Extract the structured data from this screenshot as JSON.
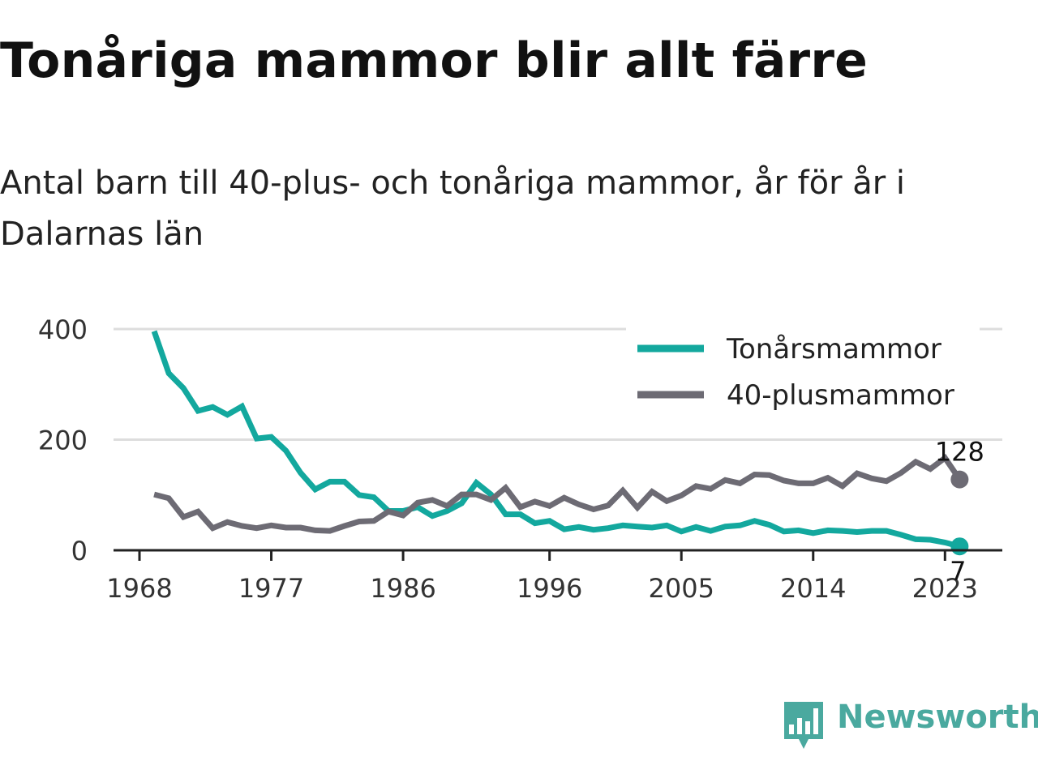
{
  "title": "Tonåriga mammor blir allt färre",
  "subtitle": "Antal barn till 40-plus- och tonåriga mammor, år för år i Dalarnas län",
  "brand": "Newsworthy",
  "chart_data": {
    "type": "line",
    "title": "Tonåriga mammor blir allt färre",
    "subtitle": "Antal barn till 40-plus- och tonåriga mammor, år för år i Dalarnas län",
    "xlabel": "",
    "ylabel": "",
    "xlim": [
      1968,
      2024
    ],
    "ylim": [
      0,
      400
    ],
    "x_ticks": [
      1968,
      1977,
      1986,
      1996,
      2005,
      2014,
      2023
    ],
    "y_ticks": [
      0,
      200,
      400
    ],
    "grid": "horizontal",
    "legend_position": "top-right",
    "x": [
      1969,
      1970,
      1971,
      1972,
      1973,
      1974,
      1975,
      1976,
      1977,
      1978,
      1979,
      1980,
      1981,
      1982,
      1983,
      1984,
      1985,
      1986,
      1987,
      1988,
      1989,
      1990,
      1991,
      1992,
      1993,
      1994,
      1995,
      1996,
      1997,
      1998,
      1999,
      2000,
      2001,
      2002,
      2003,
      2004,
      2005,
      2006,
      2007,
      2008,
      2009,
      2010,
      2011,
      2012,
      2013,
      2014,
      2015,
      2016,
      2017,
      2018,
      2019,
      2020,
      2021,
      2022,
      2023,
      2024
    ],
    "series": [
      {
        "name": "Tonårsmammor",
        "color": "#13a89e",
        "values": [
          396,
          320,
          293,
          252,
          259,
          245,
          260,
          202,
          205,
          180,
          140,
          110,
          124,
          124,
          100,
          96,
          71,
          71,
          78,
          62,
          71,
          85,
          122,
          101,
          65,
          65,
          49,
          53,
          38,
          42,
          37,
          40,
          45,
          43,
          41,
          45,
          34,
          42,
          35,
          43,
          45,
          53,
          46,
          34,
          36,
          31,
          36,
          35,
          33,
          35,
          35,
          28,
          20,
          19,
          14,
          7
        ],
        "end_label": "7"
      },
      {
        "name": "40-plusmammor",
        "color": "#6d6b74",
        "values": [
          101,
          94,
          60,
          70,
          40,
          51,
          44,
          40,
          45,
          41,
          41,
          36,
          35,
          44,
          52,
          53,
          70,
          63,
          86,
          91,
          80,
          101,
          101,
          91,
          113,
          78,
          88,
          80,
          95,
          83,
          74,
          81,
          108,
          77,
          106,
          89,
          99,
          116,
          111,
          127,
          121,
          137,
          136,
          126,
          121,
          121,
          131,
          116,
          139,
          130,
          125,
          140,
          160,
          147,
          167,
          128
        ],
        "end_label": "128"
      }
    ]
  }
}
